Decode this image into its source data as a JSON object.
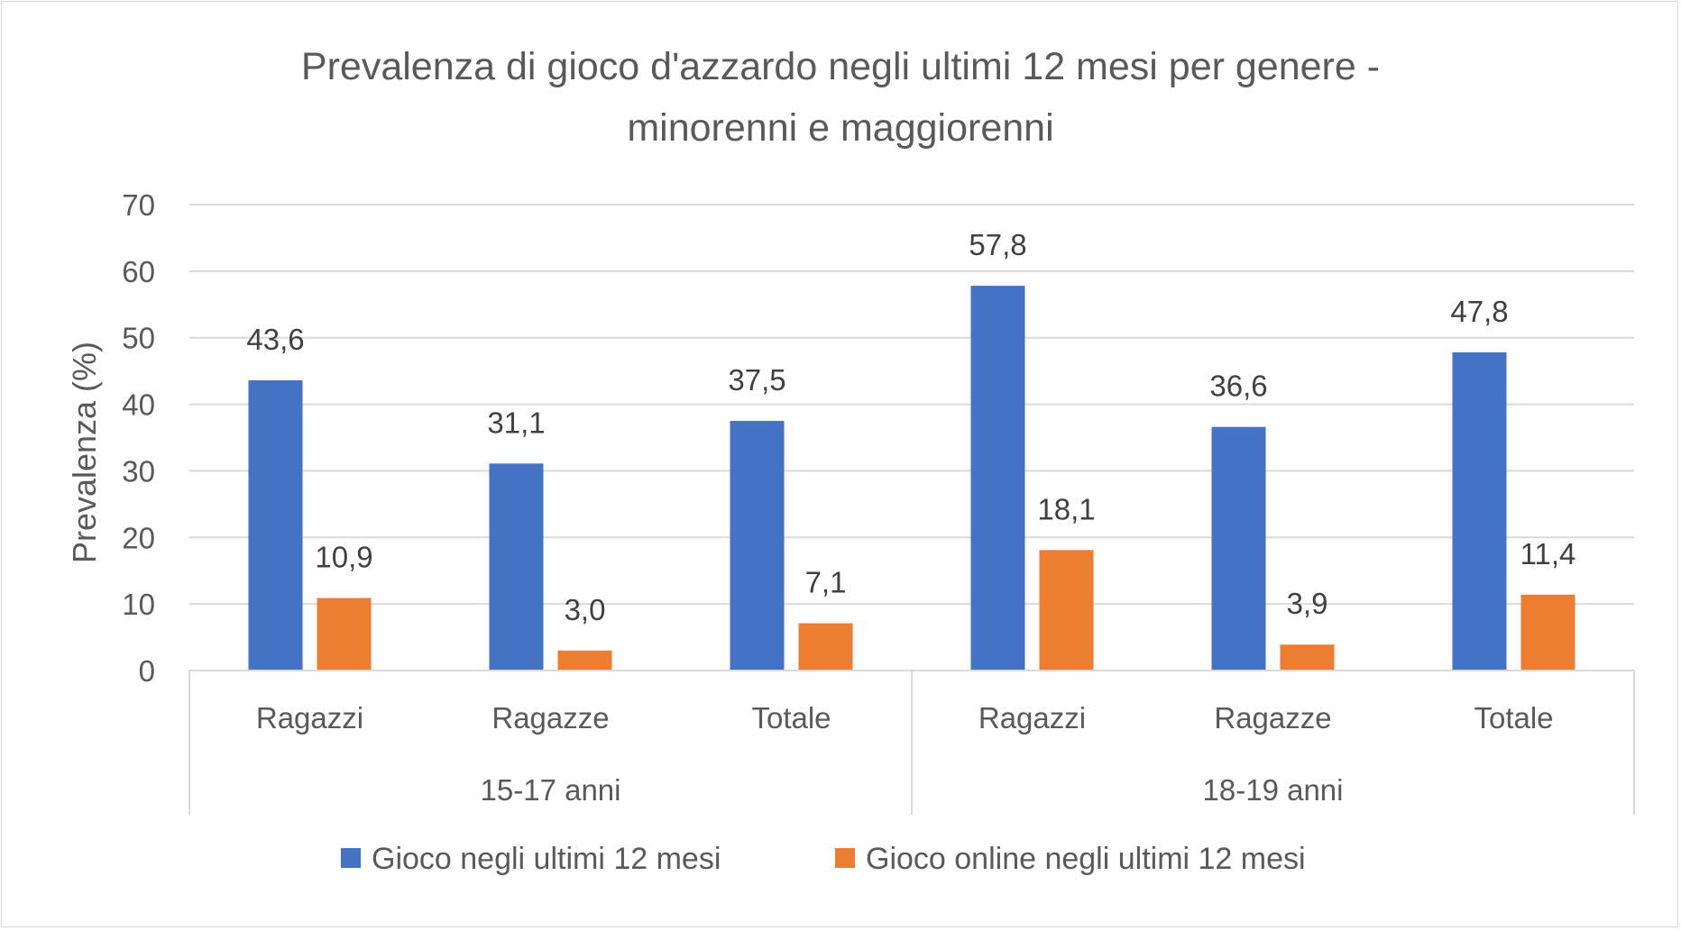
{
  "chart_data": {
    "type": "bar",
    "title_lines": [
      "Prevalenza di gioco d'azzardo negli ultimi 12 mesi per genere -",
      "minorenni e maggiorenni"
    ],
    "ylabel": "Prevalenza (%)",
    "xlabel": "",
    "ylim": [
      0,
      70
    ],
    "y_ticks": [
      "0",
      "10",
      "20",
      "30",
      "40",
      "50",
      "60",
      "70"
    ],
    "grid": true,
    "legend_position": "bottom",
    "groups": [
      {
        "label": "15-17 anni",
        "categories": [
          "Ragazzi",
          "Ragazze",
          "Totale"
        ]
      },
      {
        "label": "18-19 anni",
        "categories": [
          "Ragazzi",
          "Ragazze",
          "Totale"
        ]
      }
    ],
    "series": [
      {
        "name": "Gioco negli ultimi 12 mesi",
        "color": "#4472c4",
        "values": [
          43.6,
          31.1,
          37.5,
          57.8,
          36.6,
          47.8
        ],
        "labels": [
          "43,6",
          "31,1",
          "37,5",
          "57,8",
          "36,6",
          "47,8"
        ]
      },
      {
        "name": "Gioco online negli ultimi 12 mesi",
        "color": "#ed7d31",
        "values": [
          10.9,
          3.0,
          7.1,
          18.1,
          3.9,
          11.4
        ],
        "labels": [
          "10,9",
          "3,0",
          "7,1",
          "18,1",
          "3,9",
          "11,4"
        ]
      }
    ]
  }
}
